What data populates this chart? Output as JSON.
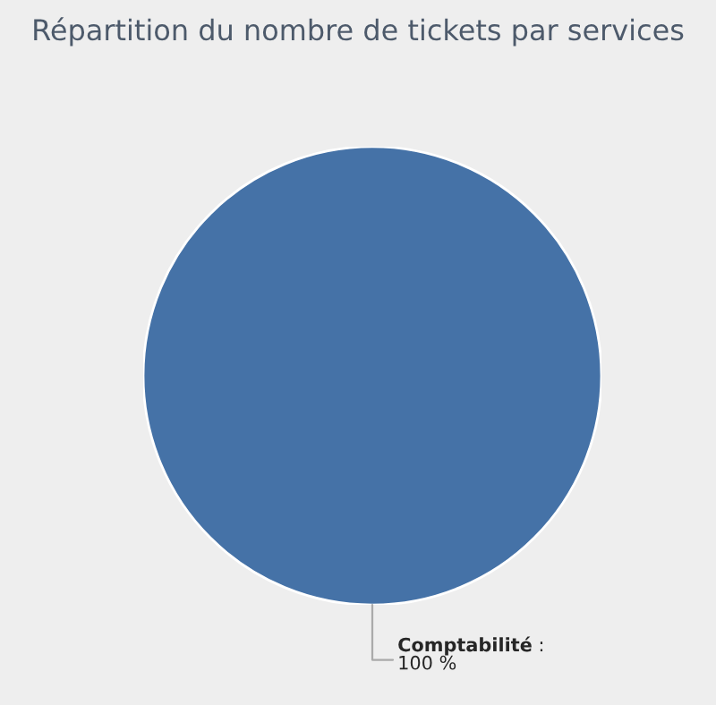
{
  "chart_data": {
    "type": "pie",
    "title": "Répartition du nombre de tickets par services",
    "categories": [
      "Comptabilité"
    ],
    "values": [
      100
    ],
    "colors": [
      "#4572a7"
    ],
    "value_labels": [
      ":\n100 %"
    ],
    "legend": false
  }
}
